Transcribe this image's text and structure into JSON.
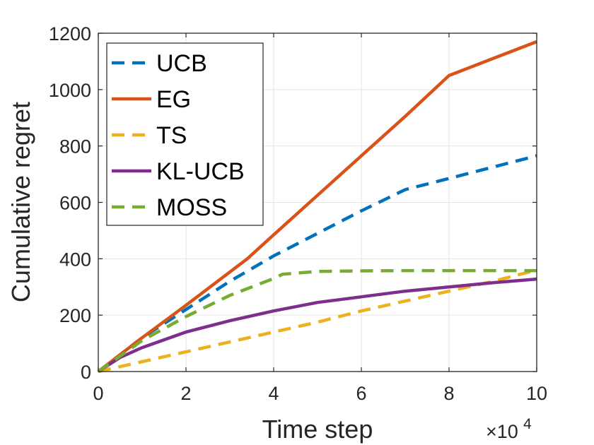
{
  "chart_data": {
    "type": "line",
    "xlabel": "Time step",
    "ylabel": "Cumulative regret",
    "x_exponent_label": "×10",
    "x_exponent_power": "4",
    "xlim": [
      0,
      10
    ],
    "ylim": [
      0,
      1200
    ],
    "xticks": [
      0,
      2,
      4,
      6,
      8,
      10
    ],
    "yticks": [
      0,
      200,
      400,
      600,
      800,
      1000,
      1200
    ],
    "grid": true,
    "legend_position": "top-left",
    "series": [
      {
        "name": "UCB",
        "color": "#0072BD",
        "style": "dashed",
        "x": [
          0,
          1,
          2,
          3,
          4,
          5,
          6,
          7,
          8,
          9,
          10
        ],
        "y": [
          0,
          120,
          220,
          320,
          410,
          490,
          570,
          645,
          685,
          725,
          765
        ]
      },
      {
        "name": "EG",
        "color": "#D95319",
        "style": "solid",
        "x": [
          0,
          1,
          2,
          3.4,
          4,
          5,
          6,
          7,
          8,
          9,
          10
        ],
        "y": [
          0,
          120,
          235,
          400,
          485,
          625,
          765,
          905,
          1050,
          1110,
          1170
        ]
      },
      {
        "name": "TS",
        "color": "#EDB120",
        "style": "dashed",
        "x": [
          0,
          1,
          2,
          3,
          4,
          5,
          6,
          7,
          8,
          9,
          10
        ],
        "y": [
          0,
          35,
          70,
          105,
          140,
          175,
          215,
          250,
          285,
          320,
          360
        ]
      },
      {
        "name": "KL-UCB",
        "color": "#7E2F8E",
        "style": "solid",
        "x": [
          0,
          0.5,
          1,
          2,
          3,
          4,
          5,
          6,
          7,
          8,
          9,
          10
        ],
        "y": [
          0,
          50,
          85,
          140,
          180,
          215,
          245,
          265,
          285,
          300,
          315,
          328
        ]
      },
      {
        "name": "MOSS",
        "color": "#77AC30",
        "style": "dashed",
        "x": [
          0,
          1,
          2,
          3,
          4,
          4.2,
          5,
          6,
          7,
          8,
          9,
          10
        ],
        "y": [
          0,
          110,
          195,
          270,
          330,
          345,
          355,
          357,
          358,
          358,
          358,
          358
        ]
      }
    ]
  }
}
